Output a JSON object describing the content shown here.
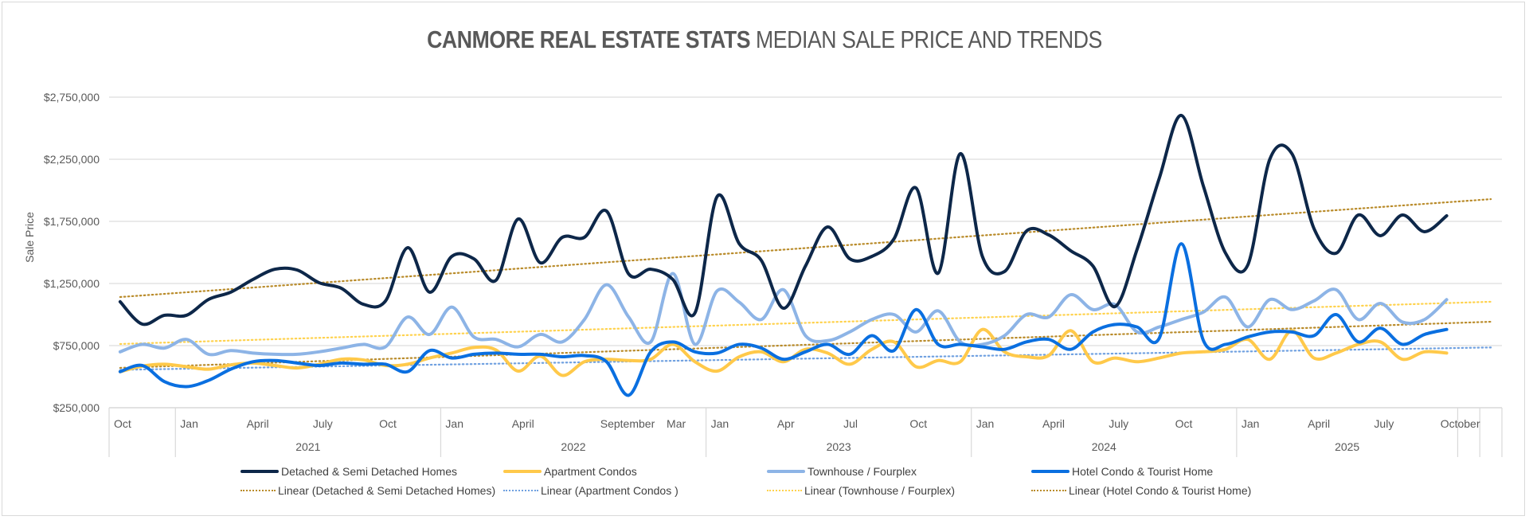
{
  "chart_data": {
    "type": "line",
    "title_bold": "CANMORE REAL ESTATE STATS",
    "title_rest": " MEDIAN SALE PRICE AND TRENDS",
    "ylabel": "Sale Price",
    "xlabel": "",
    "ylim": [
      250000,
      2750000
    ],
    "yticks": [
      "$250,000",
      "$750,000",
      "$1,250,000",
      "$1,750,000",
      "$2,250,000",
      "$2,750,000"
    ],
    "ytick_values": [
      250000,
      750000,
      1250000,
      1750000,
      2250000,
      2750000
    ],
    "grid": true,
    "legend_position": "bottom",
    "category_count": 63,
    "month_labels": [
      {
        "index": 0,
        "label": "Oct"
      },
      {
        "index": 3,
        "label": "Jan"
      },
      {
        "index": 6,
        "label": "April"
      },
      {
        "index": 9,
        "label": "July"
      },
      {
        "index": 12,
        "label": "Oct"
      },
      {
        "index": 15,
        "label": "Jan"
      },
      {
        "index": 18,
        "label": "April"
      },
      {
        "index": 22,
        "label": "September"
      },
      {
        "index": 25,
        "label": "Mar"
      },
      {
        "index": 27,
        "label": "Jan"
      },
      {
        "index": 30,
        "label": "Apr"
      },
      {
        "index": 33,
        "label": "Jul"
      },
      {
        "index": 36,
        "label": "Oct"
      },
      {
        "index": 39,
        "label": "Jan"
      },
      {
        "index": 42,
        "label": "April"
      },
      {
        "index": 45,
        "label": "July"
      },
      {
        "index": 48,
        "label": "Oct"
      },
      {
        "index": 51,
        "label": "Jan"
      },
      {
        "index": 54,
        "label": "April"
      },
      {
        "index": 57,
        "label": "July"
      },
      {
        "index": 60,
        "label": "October"
      }
    ],
    "year_groups": [
      {
        "label": "",
        "start": 0,
        "end": 3
      },
      {
        "label": "2021",
        "start": 3,
        "end": 15
      },
      {
        "label": "2022",
        "start": 15,
        "end": 27
      },
      {
        "label": "2023",
        "start": 27,
        "end": 39
      },
      {
        "label": "2024",
        "start": 39,
        "end": 51
      },
      {
        "label": "2025",
        "start": 51,
        "end": 61
      },
      {
        "label": "",
        "start": 61,
        "end": 62
      },
      {
        "label": "",
        "start": 62,
        "end": 63
      }
    ],
    "series": [
      {
        "name": "Detached & Semi Detached Homes",
        "color": "#0d2749",
        "values": [
          1103000,
          923000,
          994000,
          994000,
          1122000,
          1180000,
          1282000,
          1365000,
          1359000,
          1256000,
          1212000,
          1083000,
          1109000,
          1538000,
          1180000,
          1468000,
          1449000,
          1276000,
          1769000,
          1417000,
          1622000,
          1622000,
          1833000,
          1327000,
          1365000,
          1282000,
          1013000,
          1949000,
          1571000,
          1436000,
          1051000,
          1391000,
          1705000,
          1449000,
          1468000,
          1609000,
          2019000,
          1333000,
          2295000,
          1468000,
          1346000,
          1673000,
          1641000,
          1513000,
          1391000,
          1064000,
          1526000,
          2096000,
          2603000,
          2032000,
          1494000,
          1397000,
          2250000,
          2295000,
          1692000,
          1494000,
          1801000,
          1635000,
          1801000,
          1667000,
          1795000
        ]
      },
      {
        "name": "Apartment Condos",
        "color": "#ffc94a",
        "values": [
          540000,
          585000,
          600000,
          580000,
          560000,
          595000,
          610000,
          590000,
          570000,
          600000,
          640000,
          635000,
          590000,
          600000,
          650000,
          690000,
          735000,
          715000,
          545000,
          665000,
          510000,
          620000,
          640000,
          630000,
          640000,
          760000,
          620000,
          545000,
          660000,
          700000,
          620000,
          720000,
          690000,
          600000,
          720000,
          780000,
          580000,
          630000,
          620000,
          880000,
          700000,
          660000,
          670000,
          870000,
          620000,
          650000,
          620000,
          650000,
          690000,
          700000,
          720000,
          800000,
          640000,
          870000,
          650000,
          690000,
          760000,
          780000,
          640000,
          700000,
          690000
        ]
      },
      {
        "name": "Townhouse / Fourplex",
        "color": "#8db4e6",
        "values": [
          700000,
          760000,
          730000,
          800000,
          680000,
          710000,
          690000,
          680000,
          680000,
          700000,
          730000,
          760000,
          740000,
          980000,
          840000,
          1060000,
          820000,
          800000,
          740000,
          840000,
          780000,
          960000,
          1240000,
          980000,
          780000,
          1330000,
          760000,
          1190000,
          1100000,
          960000,
          1200000,
          830000,
          790000,
          860000,
          960000,
          1000000,
          860000,
          1030000,
          780000,
          760000,
          830000,
          1000000,
          980000,
          1160000,
          1040000,
          1080000,
          860000,
          900000,
          960000,
          1020000,
          1140000,
          900000,
          1120000,
          1040000,
          1110000,
          1200000,
          960000,
          1090000,
          940000,
          960000,
          1120000
        ]
      },
      {
        "name": "Hotel Condo & Tourist Home",
        "color": "#0a6fe0",
        "values": [
          540000,
          590000,
          460000,
          420000,
          470000,
          560000,
          620000,
          630000,
          610000,
          590000,
          610000,
          600000,
          600000,
          540000,
          710000,
          650000,
          680000,
          690000,
          680000,
          680000,
          660000,
          670000,
          620000,
          350000,
          700000,
          780000,
          700000,
          690000,
          760000,
          730000,
          640000,
          700000,
          760000,
          680000,
          830000,
          710000,
          1040000,
          760000,
          760000,
          740000,
          720000,
          780000,
          800000,
          720000,
          860000,
          920000,
          900000,
          810000,
          1570000,
          790000,
          760000,
          820000,
          860000,
          860000,
          830000,
          1000000,
          780000,
          890000,
          760000,
          840000,
          880000
        ]
      }
    ],
    "trendlines": [
      {
        "name": "Linear (Detached & Semi Detached Homes)",
        "color": "#b98b2a",
        "start": 1141000,
        "end": 1929000
      },
      {
        "name": "Linear (Apartment Condos )",
        "color": "#6fa0e0",
        "start": 555000,
        "end": 735000
      },
      {
        "name": "Linear (Townhouse / Fourplex)",
        "color": "#ffd24d",
        "start": 763000,
        "end": 1103000
      },
      {
        "name": "Linear (Hotel Condo & Tourist Home)",
        "color": "#b98b2a",
        "start": 571000,
        "end": 942000
      }
    ]
  },
  "legend": {
    "items": [
      {
        "label": "Detached & Semi Detached Homes",
        "color": "#0d2749",
        "style": "solid"
      },
      {
        "label": "Apartment Condos",
        "color": "#ffc94a",
        "style": "solid"
      },
      {
        "label": "Townhouse / Fourplex",
        "color": "#8db4e6",
        "style": "solid"
      },
      {
        "label": "Hotel Condo & Tourist Home",
        "color": "#0a6fe0",
        "style": "solid"
      },
      {
        "label": "Linear (Detached & Semi Detached Homes)",
        "color": "#b98b2a",
        "style": "dotted"
      },
      {
        "label": "Linear (Apartment Condos )",
        "color": "#6fa0e0",
        "style": "dotted"
      },
      {
        "label": "Linear (Townhouse / Fourplex)",
        "color": "#ffd24d",
        "style": "dotted"
      },
      {
        "label": "Linear (Hotel Condo & Tourist Home)",
        "color": "#b98b2a",
        "style": "dotted"
      }
    ]
  }
}
